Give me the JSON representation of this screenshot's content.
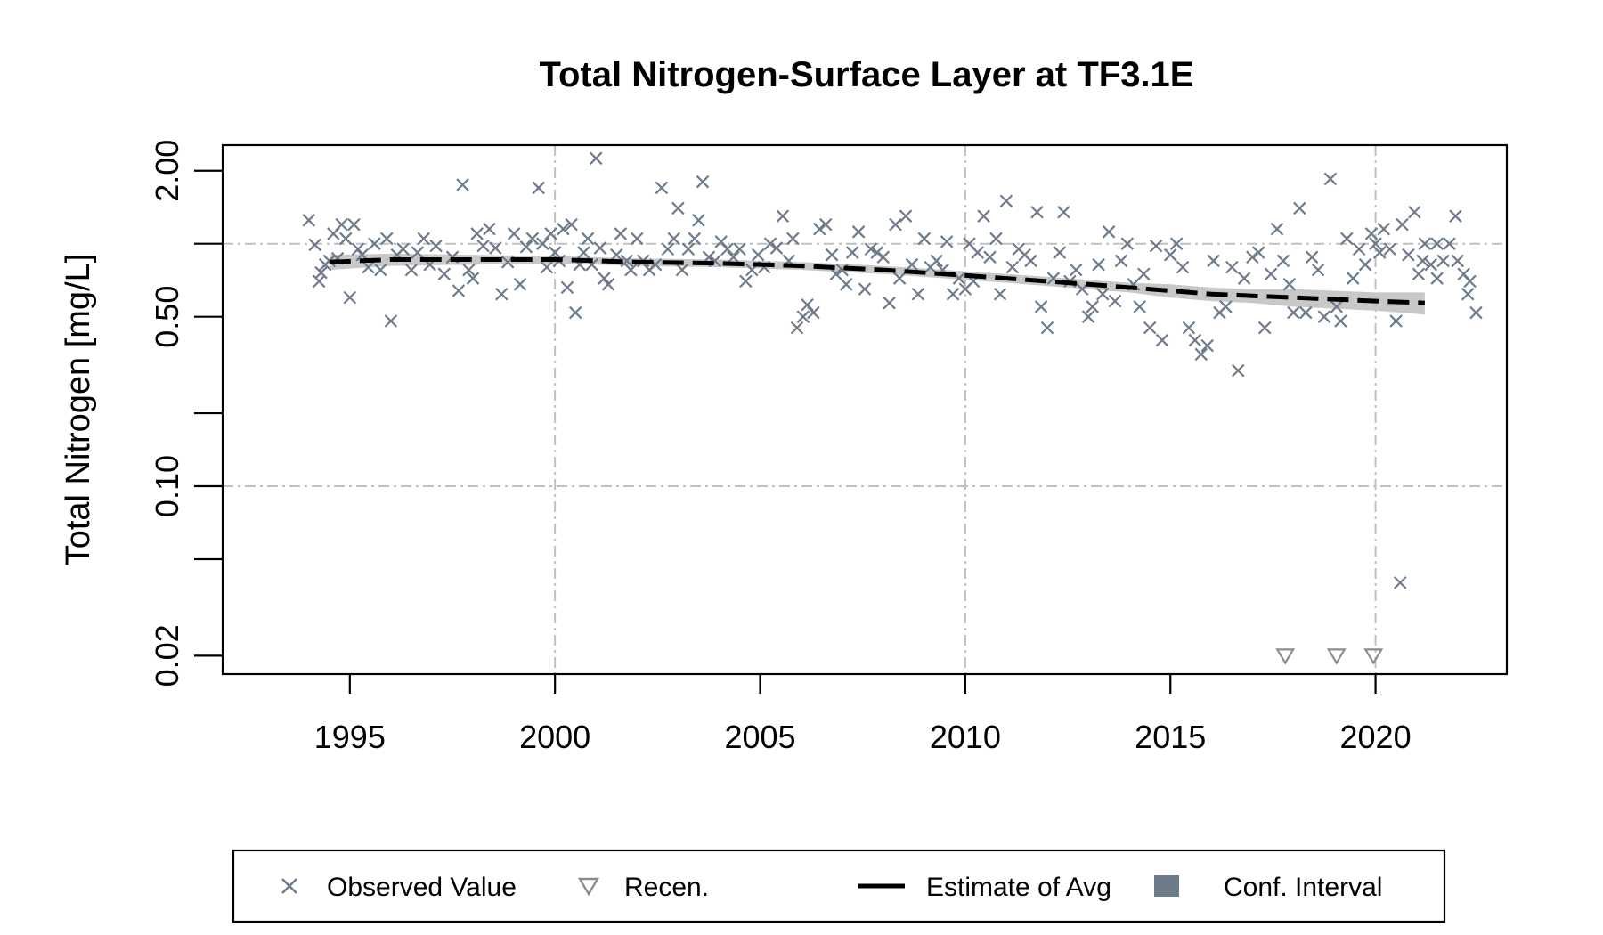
{
  "chart_data": {
    "type": "scatter",
    "title": "Total Nitrogen-Surface Layer at TF3.1E",
    "xlabel": "",
    "ylabel": "Total Nitrogen [mg/L]",
    "y_scale": "log",
    "xlim": [
      1991.9,
      2023.2
    ],
    "ylim": [
      0.0168,
      2.55
    ],
    "x_ticks": [
      1995,
      2000,
      2005,
      2010,
      2015,
      2020
    ],
    "x_tick_labels": [
      "1995",
      "2000",
      "2005",
      "2010",
      "2015",
      "2020"
    ],
    "y_ticks": [
      0.02,
      0.1,
      0.5,
      2.0
    ],
    "y_tick_labels": [
      "0.02",
      "0.10",
      "0.50",
      "2.00"
    ],
    "y_minor_ticks": [
      0.05,
      0.2,
      1.0
    ],
    "grid": true,
    "grid_x": [
      2000,
      2010,
      2020
    ],
    "grid_y": [
      0.1,
      1.0
    ],
    "colors": {
      "observed": "#6e7b8b",
      "recensored": "#8c8c8c",
      "estimate": "#000000",
      "conf_interval": "#c8c8c8",
      "grid": "#c0c0c0"
    },
    "legend": {
      "placement": "bottom",
      "items": [
        {
          "label": "Observed Value",
          "marker": "x",
          "color": "#6e7b8b"
        },
        {
          "label": "Recen.",
          "marker": "triangle-down",
          "color": "#8c8c8c"
        },
        {
          "label": "Estimate of Avg",
          "marker": "dashed-line",
          "color": "#000000"
        },
        {
          "label": "Conf. Interval",
          "marker": "square",
          "color": "#6e7b8b"
        }
      ]
    },
    "series": [
      {
        "name": "Observed Value",
        "marker": "x",
        "points": [
          [
            1994.0,
            1.25
          ],
          [
            1994.15,
            0.99
          ],
          [
            1994.25,
            0.7
          ],
          [
            1994.3,
            0.76
          ],
          [
            1994.4,
            0.82
          ],
          [
            1994.5,
            0.85
          ],
          [
            1994.6,
            1.1
          ],
          [
            1994.7,
            0.87
          ],
          [
            1994.8,
            1.2
          ],
          [
            1994.9,
            1.05
          ],
          [
            1995.0,
            0.6
          ],
          [
            1995.1,
            1.2
          ],
          [
            1995.2,
            0.95
          ],
          [
            1995.3,
            0.9
          ],
          [
            1995.45,
            0.8
          ],
          [
            1995.6,
            1.0
          ],
          [
            1995.75,
            0.78
          ],
          [
            1995.9,
            1.05
          ],
          [
            1996.0,
            0.48
          ],
          [
            1996.15,
            0.9
          ],
          [
            1996.3,
            0.95
          ],
          [
            1996.5,
            0.78
          ],
          [
            1996.65,
            0.92
          ],
          [
            1996.8,
            1.05
          ],
          [
            1996.95,
            0.82
          ],
          [
            1997.1,
            0.98
          ],
          [
            1997.3,
            0.75
          ],
          [
            1997.5,
            0.88
          ],
          [
            1997.65,
            0.64
          ],
          [
            1997.75,
            1.75
          ],
          [
            1997.9,
            0.78
          ],
          [
            1998.0,
            0.72
          ],
          [
            1998.1,
            1.1
          ],
          [
            1998.25,
            0.98
          ],
          [
            1998.4,
            1.15
          ],
          [
            1998.55,
            0.96
          ],
          [
            1998.7,
            0.62
          ],
          [
            1998.85,
            0.84
          ],
          [
            1999.0,
            1.1
          ],
          [
            1999.15,
            0.68
          ],
          [
            1999.3,
            0.97
          ],
          [
            1999.45,
            1.05
          ],
          [
            1999.6,
            1.7
          ],
          [
            1999.7,
            1.0
          ],
          [
            1999.8,
            0.8
          ],
          [
            1999.9,
            1.1
          ],
          [
            2000.0,
            0.92
          ],
          [
            2000.1,
            0.85
          ],
          [
            2000.2,
            1.15
          ],
          [
            2000.3,
            0.66
          ],
          [
            2000.4,
            1.2
          ],
          [
            2000.5,
            0.52
          ],
          [
            2000.6,
            0.82
          ],
          [
            2000.7,
            0.92
          ],
          [
            2000.8,
            1.05
          ],
          [
            2000.9,
            0.82
          ],
          [
            2001.0,
            2.25
          ],
          [
            2001.1,
            0.96
          ],
          [
            2001.2,
            0.72
          ],
          [
            2001.3,
            0.68
          ],
          [
            2001.5,
            0.9
          ],
          [
            2001.6,
            1.1
          ],
          [
            2001.75,
            0.85
          ],
          [
            2001.85,
            0.78
          ],
          [
            2002.0,
            1.05
          ],
          [
            2002.15,
            0.85
          ],
          [
            2002.3,
            0.78
          ],
          [
            2002.45,
            0.82
          ],
          [
            2002.6,
            1.7
          ],
          [
            2002.75,
            0.95
          ],
          [
            2002.9,
            1.05
          ],
          [
            2003.0,
            1.4
          ],
          [
            2003.1,
            0.78
          ],
          [
            2003.25,
            0.95
          ],
          [
            2003.4,
            1.05
          ],
          [
            2003.5,
            1.25
          ],
          [
            2003.6,
            1.8
          ],
          [
            2003.75,
            0.88
          ],
          [
            2003.9,
            0.85
          ],
          [
            2004.05,
            1.02
          ],
          [
            2004.2,
            0.95
          ],
          [
            2004.35,
            0.88
          ],
          [
            2004.5,
            0.95
          ],
          [
            2004.65,
            0.7
          ],
          [
            2004.8,
            0.78
          ],
          [
            2004.95,
            0.9
          ],
          [
            2005.1,
            0.8
          ],
          [
            2005.25,
            1.0
          ],
          [
            2005.4,
            0.96
          ],
          [
            2005.55,
            1.3
          ],
          [
            2005.7,
            0.85
          ],
          [
            2005.8,
            1.05
          ],
          [
            2005.9,
            0.45
          ],
          [
            2006.05,
            0.5
          ],
          [
            2006.15,
            0.56
          ],
          [
            2006.3,
            0.52
          ],
          [
            2006.45,
            1.15
          ],
          [
            2006.6,
            1.2
          ],
          [
            2006.75,
            0.9
          ],
          [
            2006.85,
            0.75
          ],
          [
            2007.0,
            0.78
          ],
          [
            2007.1,
            0.68
          ],
          [
            2007.25,
            0.92
          ],
          [
            2007.4,
            1.12
          ],
          [
            2007.55,
            0.65
          ],
          [
            2007.7,
            0.95
          ],
          [
            2007.85,
            0.92
          ],
          [
            2008.0,
            0.88
          ],
          [
            2008.15,
            0.57
          ],
          [
            2008.3,
            1.2
          ],
          [
            2008.4,
            0.72
          ],
          [
            2008.55,
            1.3
          ],
          [
            2008.7,
            0.82
          ],
          [
            2008.85,
            0.62
          ],
          [
            2009.0,
            1.05
          ],
          [
            2009.15,
            0.8
          ],
          [
            2009.3,
            0.85
          ],
          [
            2009.45,
            0.78
          ],
          [
            2009.55,
            1.02
          ],
          [
            2009.7,
            0.62
          ],
          [
            2009.85,
            0.72
          ],
          [
            2010.0,
            0.65
          ],
          [
            2010.1,
            1.0
          ],
          [
            2010.2,
            0.7
          ],
          [
            2010.3,
            0.92
          ],
          [
            2010.45,
            1.3
          ],
          [
            2010.6,
            0.88
          ],
          [
            2010.75,
            1.05
          ],
          [
            2010.85,
            0.62
          ],
          [
            2011.0,
            1.5
          ],
          [
            2011.15,
            0.8
          ],
          [
            2011.3,
            0.95
          ],
          [
            2011.45,
            0.9
          ],
          [
            2011.6,
            0.85
          ],
          [
            2011.75,
            1.35
          ],
          [
            2011.85,
            0.55
          ],
          [
            2012.0,
            0.45
          ],
          [
            2012.15,
            0.72
          ],
          [
            2012.3,
            0.92
          ],
          [
            2012.4,
            1.35
          ],
          [
            2012.55,
            0.7
          ],
          [
            2012.7,
            0.78
          ],
          [
            2012.85,
            0.65
          ],
          [
            2013.0,
            0.5
          ],
          [
            2013.1,
            0.55
          ],
          [
            2013.25,
            0.82
          ],
          [
            2013.35,
            0.62
          ],
          [
            2013.5,
            1.12
          ],
          [
            2013.65,
            0.58
          ],
          [
            2013.8,
            0.85
          ],
          [
            2013.95,
            1.0
          ],
          [
            2014.1,
            0.68
          ],
          [
            2014.25,
            0.55
          ],
          [
            2014.35,
            0.75
          ],
          [
            2014.5,
            0.45
          ],
          [
            2014.65,
            0.98
          ],
          [
            2014.8,
            0.4
          ],
          [
            2015.0,
            0.9
          ],
          [
            2015.15,
            1.0
          ],
          [
            2015.3,
            0.8
          ],
          [
            2015.45,
            0.45
          ],
          [
            2015.6,
            0.4
          ],
          [
            2015.75,
            0.35
          ],
          [
            2015.9,
            0.38
          ],
          [
            2016.05,
            0.85
          ],
          [
            2016.2,
            0.52
          ],
          [
            2016.35,
            0.55
          ],
          [
            2016.5,
            0.8
          ],
          [
            2016.65,
            0.3
          ],
          [
            2016.8,
            0.72
          ],
          [
            2017.0,
            0.88
          ],
          [
            2017.15,
            0.92
          ],
          [
            2017.3,
            0.45
          ],
          [
            2017.45,
            0.75
          ],
          [
            2017.6,
            1.15
          ],
          [
            2017.75,
            0.85
          ],
          [
            2017.9,
            0.68
          ],
          [
            2018.0,
            0.52
          ],
          [
            2018.15,
            1.4
          ],
          [
            2018.3,
            0.52
          ],
          [
            2018.45,
            0.88
          ],
          [
            2018.6,
            0.78
          ],
          [
            2018.75,
            0.5
          ],
          [
            2018.9,
            1.85
          ],
          [
            2019.05,
            0.55
          ],
          [
            2019.15,
            0.48
          ],
          [
            2019.3,
            1.05
          ],
          [
            2019.45,
            0.72
          ],
          [
            2019.6,
            0.95
          ],
          [
            2019.75,
            0.82
          ],
          [
            2019.9,
            1.1
          ],
          [
            2020.0,
            1.0
          ],
          [
            2020.1,
            0.92
          ],
          [
            2020.2,
            1.15
          ],
          [
            2020.35,
            0.95
          ],
          [
            2020.5,
            0.48
          ],
          [
            2020.65,
            1.2
          ],
          [
            2020.8,
            0.9
          ],
          [
            2020.95,
            1.35
          ],
          [
            2021.05,
            0.75
          ],
          [
            2021.2,
            1.0
          ],
          [
            2021.35,
            0.82
          ],
          [
            2021.5,
            0.72
          ],
          [
            2021.65,
            0.85
          ],
          [
            2021.8,
            1.0
          ],
          [
            2021.95,
            1.3
          ],
          [
            2020.6,
            0.04
          ],
          [
            2021.15,
            0.85
          ],
          [
            2021.5,
            1.0
          ],
          [
            2022.0,
            0.85
          ],
          [
            2022.15,
            0.75
          ],
          [
            2022.3,
            0.7
          ],
          [
            2022.45,
            0.52
          ],
          [
            2022.25,
            0.62
          ]
        ]
      },
      {
        "name": "Recen.",
        "marker": "triangle-down",
        "points": [
          [
            2017.8,
            0.02
          ],
          [
            2019.05,
            0.02
          ],
          [
            2019.95,
            0.02
          ]
        ]
      },
      {
        "name": "Estimate of Avg",
        "line": "dashed",
        "points": [
          [
            1994.5,
            0.84
          ],
          [
            1996.0,
            0.86
          ],
          [
            1998.0,
            0.86
          ],
          [
            2000.0,
            0.86
          ],
          [
            2002.0,
            0.84
          ],
          [
            2004.0,
            0.83
          ],
          [
            2006.0,
            0.81
          ],
          [
            2008.0,
            0.78
          ],
          [
            2010.0,
            0.74
          ],
          [
            2011.0,
            0.72
          ],
          [
            2012.0,
            0.7
          ],
          [
            2013.0,
            0.68
          ],
          [
            2014.0,
            0.66
          ],
          [
            2015.0,
            0.64
          ],
          [
            2016.0,
            0.62
          ],
          [
            2017.0,
            0.61
          ],
          [
            2018.0,
            0.6
          ],
          [
            2019.0,
            0.59
          ],
          [
            2020.0,
            0.58
          ],
          [
            2021.2,
            0.57
          ]
        ]
      },
      {
        "name": "Conf. Interval",
        "band": true,
        "lower": [
          [
            1994.5,
            0.78
          ],
          [
            1996.0,
            0.81
          ],
          [
            1998.0,
            0.82
          ],
          [
            2000.0,
            0.83
          ],
          [
            2002.0,
            0.81
          ],
          [
            2004.0,
            0.8
          ],
          [
            2006.0,
            0.78
          ],
          [
            2008.0,
            0.75
          ],
          [
            2010.0,
            0.71
          ],
          [
            2011.0,
            0.69
          ],
          [
            2012.0,
            0.67
          ],
          [
            2013.0,
            0.65
          ],
          [
            2014.0,
            0.63
          ],
          [
            2015.0,
            0.6
          ],
          [
            2016.0,
            0.58
          ],
          [
            2017.0,
            0.57
          ],
          [
            2018.0,
            0.55
          ],
          [
            2019.0,
            0.54
          ],
          [
            2020.0,
            0.53
          ],
          [
            2021.2,
            0.51
          ]
        ],
        "upper": [
          [
            1994.5,
            0.9
          ],
          [
            1996.0,
            0.91
          ],
          [
            1998.0,
            0.9
          ],
          [
            2000.0,
            0.89
          ],
          [
            2002.0,
            0.87
          ],
          [
            2004.0,
            0.86
          ],
          [
            2006.0,
            0.84
          ],
          [
            2008.0,
            0.81
          ],
          [
            2010.0,
            0.77
          ],
          [
            2011.0,
            0.75
          ],
          [
            2012.0,
            0.73
          ],
          [
            2013.0,
            0.71
          ],
          [
            2014.0,
            0.69
          ],
          [
            2015.0,
            0.68
          ],
          [
            2016.0,
            0.66
          ],
          [
            2017.0,
            0.65
          ],
          [
            2018.0,
            0.65
          ],
          [
            2019.0,
            0.64
          ],
          [
            2020.0,
            0.63
          ],
          [
            2021.2,
            0.63
          ]
        ]
      }
    ]
  }
}
